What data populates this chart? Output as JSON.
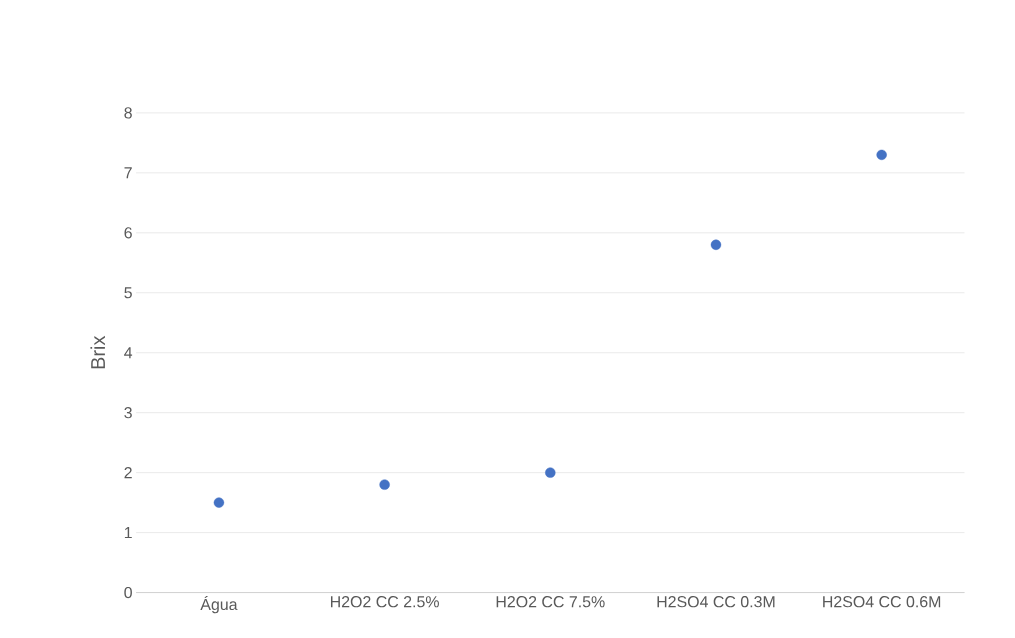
{
  "chart_data": {
    "type": "scatter",
    "ylabel": "Brix",
    "categories": [
      "Água",
      "H2O2 CC 2.5%",
      "H2O2 CC 7.5%",
      "H2SO4 CC 0.3M",
      "H2SO4 CC 0.6M"
    ],
    "values": [
      1.5,
      1.8,
      2.0,
      5.8,
      7.3
    ],
    "color": "#4472c4",
    "marker": "circle",
    "grid": "y",
    "ylim": [
      0,
      8
    ],
    "yticks": [
      0,
      1,
      2,
      3,
      4,
      5,
      6,
      7,
      8
    ]
  }
}
